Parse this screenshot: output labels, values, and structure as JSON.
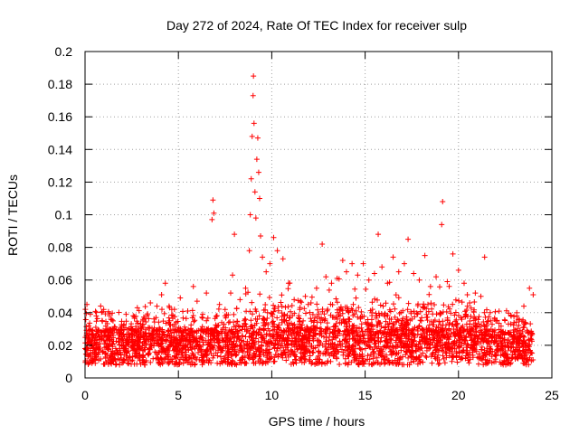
{
  "chart_data": {
    "type": "scatter",
    "title": "Day 272 of 2024, Rate Of TEC Index for receiver sulp",
    "xlabel": "GPS time / hours",
    "ylabel": "ROTI / TECUs",
    "xlim": [
      0,
      25
    ],
    "ylim": [
      0,
      0.2
    ],
    "x_ticks": [
      0,
      5,
      10,
      15,
      20,
      25
    ],
    "x_tick_labels": [
      "0",
      "5",
      "10",
      "15",
      "20",
      "25"
    ],
    "y_ticks": [
      0,
      0.02,
      0.04,
      0.06,
      0.08,
      0.1,
      0.12,
      0.14,
      0.16,
      0.18,
      0.2
    ],
    "y_tick_labels": [
      "0",
      "0.02",
      "0.04",
      "0.06",
      "0.08",
      "0.1",
      "0.12",
      "0.14",
      "0.16",
      "0.18",
      "0.2"
    ],
    "grid": true,
    "marker": "+",
    "color": "#ff0000",
    "series": [
      {
        "name": "ROTI",
        "points": [
          [
            0.0,
            0.018
          ],
          [
            0.1,
            0.045
          ],
          [
            0.2,
            0.032
          ],
          [
            0.4,
            0.025
          ],
          [
            0.6,
            0.038
          ],
          [
            0.8,
            0.021
          ],
          [
            1.0,
            0.042
          ],
          [
            1.2,
            0.028
          ],
          [
            1.5,
            0.035
          ],
          [
            1.8,
            0.024
          ],
          [
            2.2,
            0.039
          ],
          [
            2.5,
            0.029
          ],
          [
            2.8,
            0.043
          ],
          [
            3.1,
            0.031
          ],
          [
            3.5,
            0.046
          ],
          [
            3.8,
            0.037
          ],
          [
            4.1,
            0.051
          ],
          [
            4.3,
            0.058
          ],
          [
            4.5,
            0.044
          ],
          [
            4.8,
            0.033
          ],
          [
            5.1,
            0.049
          ],
          [
            5.5,
            0.041
          ],
          [
            5.8,
            0.056
          ],
          [
            6.0,
            0.047
          ],
          [
            6.3,
            0.039
          ],
          [
            6.5,
            0.052
          ],
          [
            6.8,
            0.097
          ],
          [
            6.85,
            0.109
          ],
          [
            6.9,
            0.101
          ],
          [
            7.2,
            0.045
          ],
          [
            7.5,
            0.038
          ],
          [
            7.8,
            0.052
          ],
          [
            7.9,
            0.063
          ],
          [
            8.0,
            0.088
          ],
          [
            8.3,
            0.048
          ],
          [
            8.6,
            0.055
          ],
          [
            8.8,
            0.078
          ],
          [
            8.85,
            0.1
          ],
          [
            8.9,
            0.122
          ],
          [
            8.95,
            0.148
          ],
          [
            9.0,
            0.173
          ],
          [
            9.02,
            0.185
          ],
          [
            9.05,
            0.156
          ],
          [
            9.1,
            0.114
          ],
          [
            9.15,
            0.098
          ],
          [
            9.2,
            0.134
          ],
          [
            9.25,
            0.147
          ],
          [
            9.3,
            0.126
          ],
          [
            9.35,
            0.11
          ],
          [
            9.4,
            0.087
          ],
          [
            9.5,
            0.074
          ],
          [
            9.7,
            0.065
          ],
          [
            9.9,
            0.07
          ],
          [
            10.1,
            0.086
          ],
          [
            10.3,
            0.078
          ],
          [
            10.6,
            0.073
          ],
          [
            10.9,
            0.058
          ],
          [
            11.2,
            0.048
          ],
          [
            11.5,
            0.042
          ],
          [
            11.8,
            0.05
          ],
          [
            12.1,
            0.046
          ],
          [
            12.4,
            0.055
          ],
          [
            12.7,
            0.082
          ],
          [
            12.9,
            0.062
          ],
          [
            13.2,
            0.058
          ],
          [
            13.5,
            0.061
          ],
          [
            13.8,
            0.072
          ],
          [
            14.0,
            0.065
          ],
          [
            14.3,
            0.07
          ],
          [
            14.6,
            0.063
          ],
          [
            14.9,
            0.07
          ],
          [
            15.2,
            0.06
          ],
          [
            15.5,
            0.064
          ],
          [
            15.7,
            0.088
          ],
          [
            15.9,
            0.068
          ],
          [
            16.2,
            0.058
          ],
          [
            16.5,
            0.074
          ],
          [
            16.8,
            0.065
          ],
          [
            17.1,
            0.07
          ],
          [
            17.3,
            0.085
          ],
          [
            17.6,
            0.064
          ],
          [
            17.9,
            0.06
          ],
          [
            18.2,
            0.075
          ],
          [
            18.5,
            0.056
          ],
          [
            18.8,
            0.062
          ],
          [
            19.1,
            0.094
          ],
          [
            19.15,
            0.108
          ],
          [
            19.4,
            0.059
          ],
          [
            19.7,
            0.076
          ],
          [
            20.0,
            0.066
          ],
          [
            20.3,
            0.058
          ],
          [
            20.6,
            0.046
          ],
          [
            20.9,
            0.052
          ],
          [
            21.2,
            0.05
          ],
          [
            21.4,
            0.074
          ],
          [
            21.7,
            0.04
          ],
          [
            22.0,
            0.035
          ],
          [
            22.4,
            0.028
          ],
          [
            22.8,
            0.033
          ],
          [
            23.2,
            0.036
          ],
          [
            23.5,
            0.044
          ],
          [
            23.8,
            0.055
          ],
          [
            24.0,
            0.051
          ]
        ]
      }
    ]
  }
}
